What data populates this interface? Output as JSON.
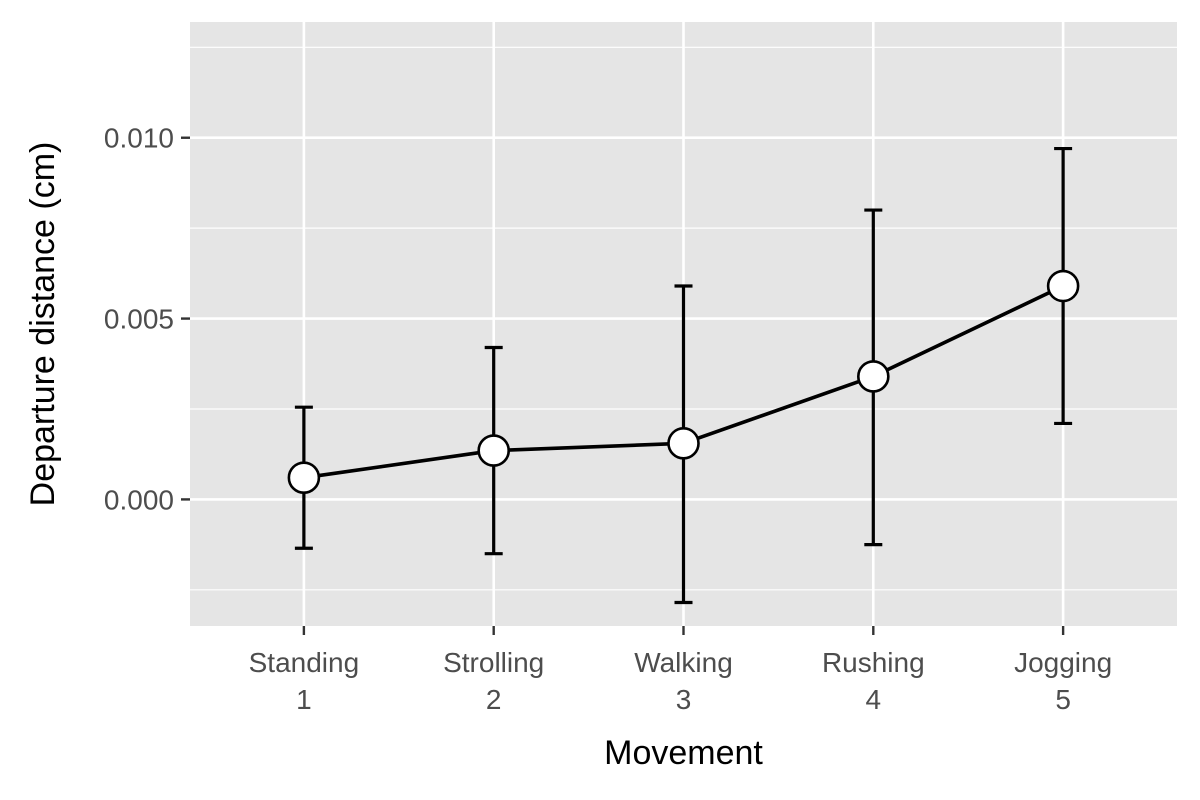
{
  "chart_data": {
    "type": "line",
    "xlabel": "Movement",
    "ylabel": "Departure distance (cm)",
    "title": "",
    "categories": [
      {
        "name": "Standing",
        "index": "1"
      },
      {
        "name": "Strolling",
        "index": "2"
      },
      {
        "name": "Walking",
        "index": "3"
      },
      {
        "name": "Rushing",
        "index": "4"
      },
      {
        "name": "Jogging",
        "index": "5"
      }
    ],
    "series": [
      {
        "values": [
          0.0006,
          0.00135,
          0.00155,
          0.0034,
          0.0059
        ],
        "error_low": [
          -0.00135,
          -0.0015,
          -0.00285,
          -0.00125,
          0.0021
        ],
        "error_high": [
          0.00255,
          0.0042,
          0.0059,
          0.008,
          0.0097
        ]
      }
    ],
    "ylim": [
      -0.0035,
      0.0132
    ],
    "y_major_ticks": [
      0.0,
      0.005,
      0.01
    ],
    "y_tick_labels": [
      "0.000",
      "0.005",
      "0.010"
    ],
    "y_minor_gridlines": [
      -0.0025,
      0.0025,
      0.0075,
      0.0125
    ],
    "grid": true,
    "background": "#e5e5e5",
    "grid_color": "#ffffff",
    "line_color": "#000000",
    "marker_fill": "#ffffff"
  }
}
